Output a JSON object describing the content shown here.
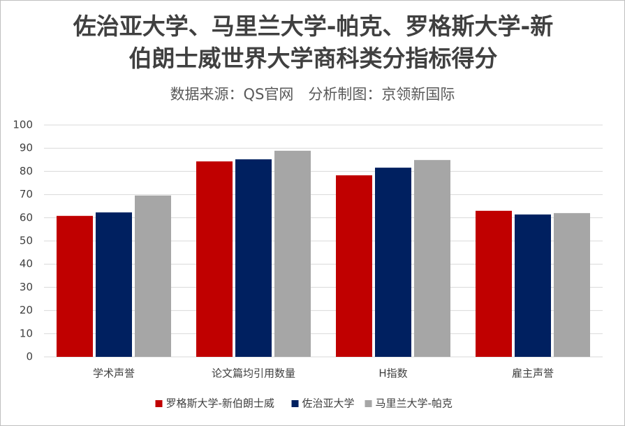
{
  "chart_data": {
    "type": "bar",
    "title": "佐治亚大学、马里兰大学-帕克、罗格斯大学-新伯朗士威世界大学商科类分指标得分",
    "subtitle": "数据来源：QS官网　分析制图：京领新国际",
    "categories": [
      "学术声誉",
      "论文篇均引用数量",
      "H指数",
      "雇主声誉"
    ],
    "series": [
      {
        "name": "罗格斯大学-新伯朗士威",
        "color": "#c00000",
        "values": [
          60.8,
          84.3,
          78.3,
          63.0
        ]
      },
      {
        "name": "佐治亚大学",
        "color": "#002060",
        "values": [
          62.3,
          85.2,
          81.6,
          61.4
        ]
      },
      {
        "name": "马里兰大学-帕克",
        "color": "#a6a6a6",
        "values": [
          69.6,
          88.9,
          84.9,
          62.0
        ]
      }
    ],
    "ylim": [
      0,
      100
    ],
    "yticks": [
      0,
      10,
      20,
      30,
      40,
      50,
      60,
      70,
      80,
      90,
      100
    ],
    "grid": true,
    "legend": "bottom"
  }
}
